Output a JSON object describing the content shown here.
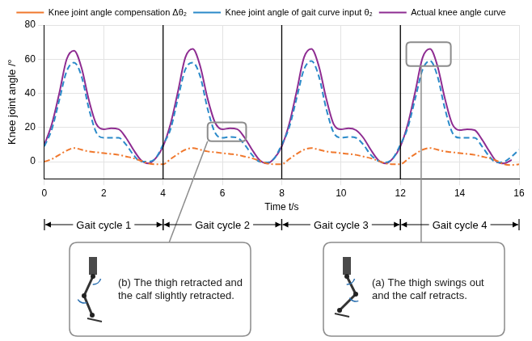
{
  "chart_data": {
    "type": "line",
    "x_label": "Time t/s",
    "y_label": "Knee joint angle /°",
    "x": [
      0,
      0.25,
      0.5,
      0.75,
      1,
      1.25,
      1.5,
      1.75,
      2,
      2.25,
      2.5,
      2.75,
      3,
      3.25,
      3.5,
      3.75,
      4,
      4.25,
      4.5,
      4.75,
      5,
      5.25,
      5.5,
      5.75,
      6,
      6.25,
      6.5,
      6.75,
      7,
      7.25,
      7.5,
      7.75,
      8,
      8.25,
      8.5,
      8.75,
      9,
      9.25,
      9.5,
      9.75,
      10,
      10.25,
      10.5,
      10.75,
      11,
      11.25,
      11.5,
      11.75,
      12,
      12.25,
      12.5,
      12.75,
      13,
      13.25,
      13.5,
      13.75,
      14,
      14.25,
      14.5,
      14.75,
      15,
      15.25,
      15.5,
      15.75,
      16
    ],
    "series": [
      {
        "name": "Knee joint angle compensation Δθ₂",
        "color": "#f0782d",
        "line_style": "dashdot",
        "marker": "none",
        "values": [
          0,
          1.5,
          4,
          6.5,
          8,
          7,
          6,
          5.5,
          5,
          4.5,
          4,
          3,
          2,
          0.5,
          -1,
          -1.5,
          -1.5,
          1.5,
          4.5,
          7,
          8,
          7,
          6,
          5.5,
          5,
          4.5,
          4,
          3,
          2,
          0.5,
          -1,
          -1.5,
          -1.5,
          1.5,
          4.5,
          7,
          8,
          7,
          6,
          5.5,
          5,
          4.5,
          4,
          3,
          2,
          0.5,
          -1,
          -1.5,
          -1.5,
          1.5,
          4.5,
          7,
          8,
          7,
          6,
          5.5,
          5,
          4.5,
          4,
          3,
          2,
          0.5,
          -1.5,
          -2,
          -1.5
        ]
      },
      {
        "name": "Knee joint angle of gait curve input θ₂",
        "color": "#2a8ac9",
        "line_style": "dashed",
        "marker": "none",
        "values": [
          9,
          19,
          36,
          53,
          58,
          50,
          31,
          17,
          14,
          14,
          14,
          10,
          4,
          0,
          0,
          2,
          10,
          19,
          37,
          54,
          58,
          50,
          31,
          17,
          14,
          14.5,
          14,
          10,
          4,
          0,
          -0.5,
          2,
          10,
          20,
          37,
          54,
          59,
          50,
          31,
          17,
          14,
          14.5,
          14,
          10,
          4,
          0.5,
          -0.5,
          2,
          10,
          20,
          37,
          54,
          59,
          50,
          31,
          17,
          14,
          14,
          14,
          9,
          3,
          -0.5,
          0,
          3,
          7
        ]
      },
      {
        "name": "Actual knee angle curve",
        "color": "#8e2c91",
        "line_style": "solid",
        "marker": "none",
        "values": [
          10,
          22,
          40,
          60,
          65,
          55,
          36,
          22,
          19,
          19.5,
          19,
          14,
          7,
          1,
          -1,
          2,
          9,
          22,
          41,
          61,
          66,
          56,
          37,
          23,
          19,
          19.5,
          19,
          14,
          7,
          1,
          -1,
          2,
          9,
          22,
          41,
          61,
          66,
          56,
          37,
          22,
          19,
          19.5,
          18.5,
          14,
          7,
          1,
          -1,
          2,
          9,
          22,
          41,
          61,
          66,
          56,
          37,
          22,
          18.5,
          19,
          18.5,
          13,
          6,
          0,
          -1,
          1,
          null
        ]
      }
    ],
    "xlim": [
      0,
      16
    ],
    "xticks": [
      0,
      2,
      4,
      6,
      8,
      10,
      12,
      14,
      16
    ],
    "ylim": [
      -10,
      80
    ],
    "yticks": [
      0,
      20,
      40,
      60,
      80
    ],
    "grid": true,
    "legend": "top",
    "gait_cycles": [
      {
        "label": "Gait cycle 1",
        "start": 0,
        "end": 4
      },
      {
        "label": "Gait cycle 2",
        "start": 4,
        "end": 8
      },
      {
        "label": "Gait cycle 3",
        "start": 8,
        "end": 12
      },
      {
        "label": "Gait cycle 4",
        "start": 12,
        "end": 16
      }
    ],
    "annotations": [
      {
        "text": "(b) The thigh retracted and the calf slightly retracted.",
        "x_range": [
          5.5,
          6.8
        ],
        "y_range": [
          12,
          23
        ]
      },
      {
        "text": "(a) The thigh swings out and the calf retracts.",
        "x_range": [
          12.2,
          13.7
        ],
        "y_range": [
          56,
          70
        ]
      }
    ]
  }
}
